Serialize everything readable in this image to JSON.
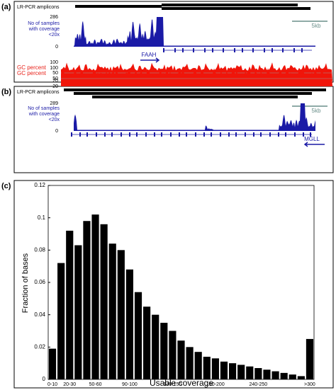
{
  "panel_a": {
    "label": "(a)",
    "track": "LR-PCR amplicons",
    "coverage_label": [
      "No of samples",
      "with coverage",
      "<20x"
    ],
    "coverage_max": 286,
    "coverage_min": 0,
    "scale": "5kb",
    "gene": "FAAH",
    "gc_label": "GC percent",
    "gc_ticks": [
      100,
      50,
      20
    ]
  },
  "panel_b": {
    "label": "(b)",
    "track": "LR-PCR amplicons",
    "coverage_label": [
      "No of samples",
      "with coverage",
      "<20x"
    ],
    "coverage_max": 289,
    "coverage_min": 0,
    "scale": "5kb",
    "gene": "MGLL",
    "gc_label": "GC percent",
    "gc_ticks": [
      100,
      50,
      20
    ]
  },
  "panel_c_label": "(c)",
  "chart_data": {
    "type": "bar",
    "ylabel": "Fraction of bases",
    "xlabel": "Usable coverage",
    "categories": [
      "0-10",
      null,
      "20-30",
      null,
      null,
      "50-60",
      null,
      null,
      null,
      "90-100",
      null,
      null,
      null,
      null,
      "140-150",
      null,
      null,
      null,
      null,
      "190-200",
      null,
      null,
      null,
      null,
      "240-250",
      null,
      null,
      null,
      null,
      null,
      ">300"
    ],
    "values": [
      0.019,
      0.072,
      0.092,
      0.083,
      0.098,
      0.102,
      0.096,
      0.084,
      0.08,
      0.068,
      0.054,
      0.045,
      0.04,
      0.035,
      0.03,
      0.024,
      0.02,
      0.017,
      0.014,
      0.013,
      0.011,
      0.01,
      0.009,
      0.008,
      0.007,
      0.006,
      0.005,
      0.004,
      0.003,
      0.002,
      0.025
    ],
    "color": "#000000",
    "ylim": [
      0,
      0.12
    ],
    "yticks": [
      0,
      0.02,
      0.04,
      0.06,
      0.08,
      0.1,
      0.12
    ]
  }
}
